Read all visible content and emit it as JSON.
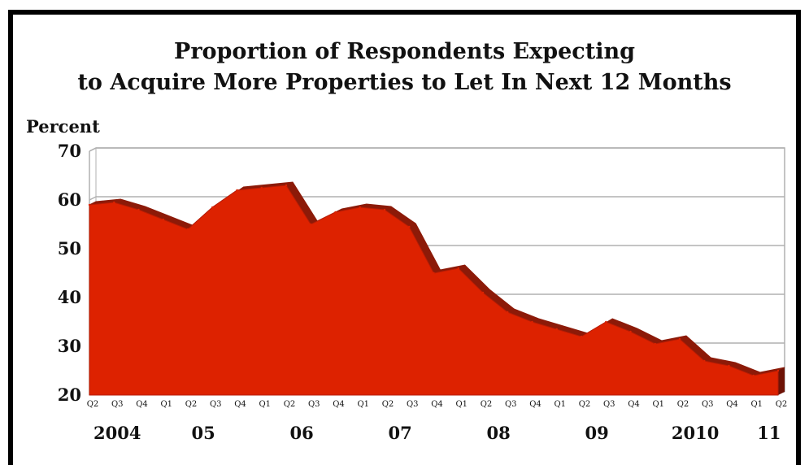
{
  "chart_data": {
    "type": "area",
    "title": "Proportion of Respondents Expecting to Acquire More Properties to Let In Next 12 Months",
    "title_lines": [
      "Proportion of Respondents Expecting",
      "to Acquire More Properties to Let In Next 12 Months"
    ],
    "ylabel": "Percent",
    "xlabel": "",
    "ylim": [
      20,
      70
    ],
    "yticks": [
      20,
      30,
      40,
      50,
      60,
      70
    ],
    "grid": true,
    "legend": "none",
    "quarter_labels": [
      "Q2",
      "Q3",
      "Q4",
      "Q1",
      "Q2",
      "Q3",
      "Q4",
      "Q1",
      "Q2",
      "Q3",
      "Q4",
      "Q1",
      "Q2",
      "Q3",
      "Q4",
      "Q1",
      "Q2",
      "Q3",
      "Q4",
      "Q1",
      "Q2",
      "Q3",
      "Q4",
      "Q1",
      "Q2",
      "Q3",
      "Q4",
      "Q1",
      "Q2"
    ],
    "year_labels": [
      {
        "label": "2004",
        "at": 1
      },
      {
        "label": "05",
        "at": 4.5
      },
      {
        "label": "06",
        "at": 8.5
      },
      {
        "label": "07",
        "at": 12.5
      },
      {
        "label": "08",
        "at": 16.5
      },
      {
        "label": "09",
        "at": 20.5
      },
      {
        "label": "2010",
        "at": 24.5
      },
      {
        "label": "11",
        "at": 27.5
      }
    ],
    "series": [
      {
        "values": [
          59,
          59.5,
          58,
          56,
          54,
          58.5,
          62,
          62.5,
          63,
          55,
          57.5,
          58.5,
          58,
          54.5,
          45,
          46,
          41,
          37,
          35,
          33.5,
          32,
          35,
          33,
          30.5,
          31.5,
          27,
          26,
          24,
          25
        ]
      }
    ],
    "colors": {
      "fill": "#dd2200",
      "side": "#8c1a08",
      "grid": "#b0b0b0"
    }
  }
}
